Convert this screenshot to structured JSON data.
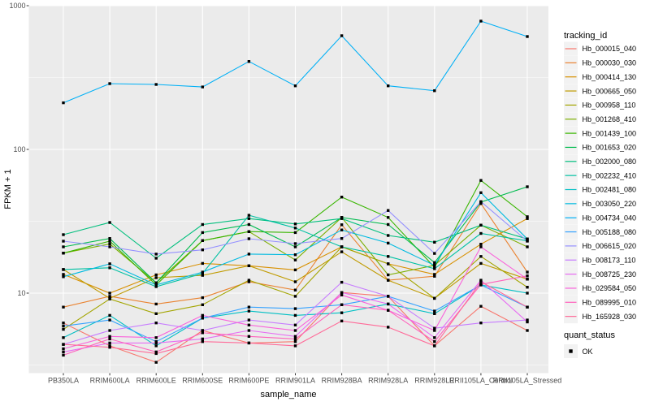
{
  "chart_data": {
    "type": "line",
    "x_title": "sample_name",
    "y_title": "FPKM + 1",
    "x_categories": [
      "PB350LA",
      "RRIM600LA",
      "RRIM600LE",
      "RRIM600SE",
      "RRIM600PE",
      "RRIM901LA",
      "RRIM928BA",
      "RRIM928LA",
      "RRIM928LE",
      "RRII105LA_Control",
      "RRII105LA_Stressed"
    ],
    "y_scale": "log10",
    "y_ticks": [
      10,
      100,
      1000
    ],
    "y_minor_ticks": [
      3.1623,
      31.623,
      316.23
    ],
    "ylim": [
      2.7,
      1000
    ],
    "grid": true,
    "legend_position": "right",
    "point_shape": "filled-square",
    "point_color": "#000000",
    "series": [
      {
        "id": "Hb_000015_040",
        "color": "#F8766D",
        "values": [
          6.2,
          4.3,
          3.3,
          5.5,
          4.5,
          4.6,
          10.1,
          9.5,
          4.3,
          8.1,
          5.5
        ]
      },
      {
        "id": "Hb_000030_030",
        "color": "#EA8331",
        "values": [
          8.0,
          9.5,
          8.4,
          9.3,
          12.0,
          10.5,
          29.9,
          12.3,
          13.1,
          42.0,
          14.0
        ]
      },
      {
        "id": "Hb_000414_130",
        "color": "#D89000",
        "values": [
          13.5,
          10.0,
          13.4,
          16.1,
          15.5,
          14.5,
          21.0,
          16.0,
          13.5,
          21.9,
          33.0
        ]
      },
      {
        "id": "Hb_000665_050",
        "color": "#C09B00",
        "values": [
          14.6,
          9.2,
          12.8,
          13.3,
          15.5,
          12.0,
          19.4,
          12.3,
          9.2,
          16.1,
          12.5
        ]
      },
      {
        "id": "Hb_000958_110",
        "color": "#A3A500",
        "values": [
          5.6,
          9.1,
          7.2,
          8.3,
          12.3,
          9.5,
          21.0,
          16.0,
          9.2,
          18.0,
          11.0
        ]
      },
      {
        "id": "Hb_001268_410",
        "color": "#7CAE00",
        "values": [
          19.0,
          22.0,
          11.8,
          23.2,
          26.8,
          17.0,
          33.6,
          13.4,
          15.6,
          29.7,
          21.0
        ]
      },
      {
        "id": "Hb_001439_100",
        "color": "#39B600",
        "values": [
          19.0,
          23.0,
          11.4,
          23.2,
          26.8,
          26.4,
          46.6,
          33.6,
          15.1,
          60.8,
          34.0
        ]
      },
      {
        "id": "Hb_001653_020",
        "color": "#00BB4E",
        "values": [
          21.0,
          24.0,
          11.8,
          26.4,
          30.0,
          21.0,
          33.6,
          30.0,
          16.3,
          43.0,
          55.0
        ]
      },
      {
        "id": "Hb_002000_080",
        "color": "#00BF7D",
        "values": [
          25.5,
          31.0,
          17.5,
          30.0,
          33.0,
          30.3,
          33.0,
          25.2,
          22.6,
          29.7,
          23.8
        ]
      },
      {
        "id": "Hb_002232_410",
        "color": "#00C1A3",
        "values": [
          14.6,
          15.0,
          11.1,
          13.7,
          34.8,
          28.4,
          21.0,
          18.0,
          14.8,
          26.0,
          23.1
        ]
      },
      {
        "id": "Hb_002481_080",
        "color": "#00BFC4",
        "values": [
          4.9,
          7.0,
          4.3,
          6.7,
          7.5,
          7.0,
          7.3,
          8.4,
          7.2,
          11.4,
          10.0
        ]
      },
      {
        "id": "Hb_003050_220",
        "color": "#00BAE0",
        "values": [
          13.0,
          16.0,
          11.4,
          14.0,
          18.7,
          18.5,
          27.5,
          22.3,
          15.6,
          50.0,
          23.8
        ]
      },
      {
        "id": "Hb_004734_040",
        "color": "#00B0F6",
        "values": [
          211,
          287,
          283,
          272,
          409,
          277,
          618,
          277,
          256,
          781,
          610
        ]
      },
      {
        "id": "Hb_005188_080",
        "color": "#35A2FF",
        "values": [
          5.9,
          6.5,
          4.6,
          6.7,
          8.0,
          7.8,
          8.3,
          9.5,
          7.5,
          11.4,
          8.0
        ]
      },
      {
        "id": "Hb_006615_020",
        "color": "#9590FF",
        "values": [
          23.0,
          21.0,
          18.7,
          20.0,
          23.9,
          22.1,
          24.0,
          37.6,
          18.9,
          43.3,
          23.0
        ]
      },
      {
        "id": "Hb_008173_110",
        "color": "#C77CFF",
        "values": [
          4.4,
          5.5,
          6.2,
          5.5,
          6.5,
          6.0,
          11.9,
          9.5,
          5.7,
          6.2,
          6.5
        ]
      },
      {
        "id": "Hb_008725_230",
        "color": "#E76BF3",
        "values": [
          3.9,
          4.5,
          4.5,
          4.8,
          5.5,
          5.0,
          10.1,
          8.4,
          4.9,
          12.3,
          6.3
        ]
      },
      {
        "id": "Hb_029584_050",
        "color": "#FA62DB",
        "values": [
          4.1,
          5.0,
          4.9,
          7.0,
          6.0,
          5.5,
          9.7,
          7.6,
          5.5,
          21.0,
          12.5
        ]
      },
      {
        "id": "Hb_089995_010",
        "color": "#FF62BC",
        "values": [
          3.7,
          4.8,
          3.9,
          5.3,
          5.0,
          4.8,
          8.3,
          7.6,
          4.6,
          11.5,
          13.2
        ]
      },
      {
        "id": "Hb_165928_030",
        "color": "#FF6A98",
        "values": [
          4.4,
          4.2,
          3.8,
          4.6,
          4.5,
          4.3,
          6.4,
          5.8,
          4.3,
          12.0,
          8.0
        ]
      }
    ]
  },
  "legend": {
    "title": "tracking_id"
  },
  "quant_legend": {
    "title": "quant_status",
    "items": [
      {
        "label": "OK"
      }
    ]
  },
  "colors": {
    "panel_bg": "#EBEBEB",
    "grid": "#FFFFFF",
    "legend_key_bg": "#F2F2F2",
    "tick_text": "#4D4D4D",
    "tick_mark": "#333333",
    "point": "#000000"
  }
}
